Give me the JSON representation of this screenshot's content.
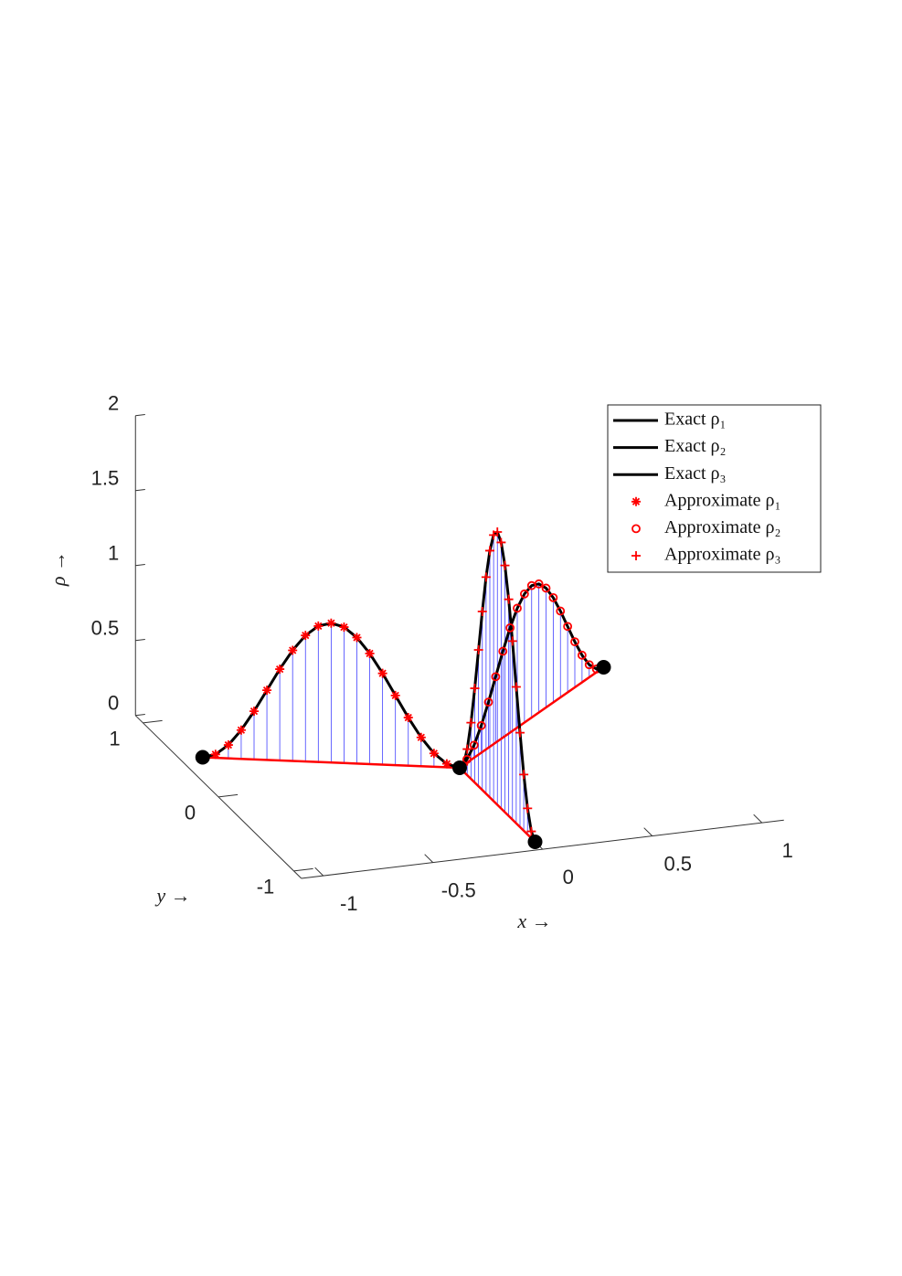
{
  "chart_data": {
    "type": "line3d",
    "xlabel": "x →",
    "ylabel": "y →",
    "zlabel": "ρ →",
    "xlim": [
      -1.1,
      1.1
    ],
    "ylim": [
      -1.1,
      1.1
    ],
    "zlim": [
      0,
      2
    ],
    "xticks": [
      -1,
      -0.5,
      0,
      0.5,
      1
    ],
    "yticks": [
      -1,
      0,
      1
    ],
    "zticks": [
      0,
      0.5,
      1,
      1.5,
      2
    ],
    "legend": "upper right",
    "stem_color": "#0000ff",
    "edge_color": "#ff0000",
    "nodes": {
      "color": "#000000",
      "x": [
        0,
        -1,
        1,
        0
      ],
      "y": [
        0,
        0.5,
        1,
        -1
      ]
    },
    "series": [
      {
        "name": "Exact ρ₁",
        "style": "line",
        "color": "#000000",
        "x": [
          -1,
          -0.95,
          -0.9,
          -0.85,
          -0.8,
          -0.75,
          -0.7,
          -0.65,
          -0.6,
          -0.55,
          -0.5,
          -0.45,
          -0.4,
          -0.35,
          -0.3,
          -0.25,
          -0.2,
          -0.15,
          -0.1,
          -0.05,
          0
        ],
        "y": [
          0.5,
          0.475,
          0.45,
          0.425,
          0.4,
          0.375,
          0.35,
          0.325,
          0.3,
          0.275,
          0.25,
          0.225,
          0.2,
          0.175,
          0.15,
          0.125,
          0.1,
          0.075,
          0.05,
          0.025,
          0
        ],
        "z": [
          0,
          0.023,
          0.089,
          0.192,
          0.321,
          0.465,
          0.609,
          0.738,
          0.841,
          0.907,
          0.93,
          0.907,
          0.841,
          0.738,
          0.609,
          0.465,
          0.321,
          0.192,
          0.089,
          0.023,
          0
        ]
      },
      {
        "name": "Exact ρ₂",
        "style": "line",
        "color": "#000000",
        "x": [
          0,
          0.05,
          0.1,
          0.15,
          0.2,
          0.25,
          0.3,
          0.35,
          0.4,
          0.45,
          0.5,
          0.55,
          0.6,
          0.65,
          0.7,
          0.75,
          0.8,
          0.85,
          0.9,
          0.95,
          1
        ],
        "y": [
          0,
          0.05,
          0.1,
          0.15,
          0.2,
          0.25,
          0.3,
          0.35,
          0.4,
          0.45,
          0.5,
          0.55,
          0.6,
          0.65,
          0.7,
          0.75,
          0.8,
          0.85,
          0.9,
          0.95,
          1
        ],
        "z": [
          0,
          0.022,
          0.084,
          0.181,
          0.304,
          0.44,
          0.576,
          0.699,
          0.796,
          0.858,
          0.88,
          0.858,
          0.796,
          0.699,
          0.576,
          0.44,
          0.304,
          0.181,
          0.084,
          0.022,
          0
        ]
      },
      {
        "name": "Exact ρ₃",
        "style": "line",
        "color": "#000000",
        "x": [
          0,
          0,
          0,
          0,
          0,
          0,
          0,
          0,
          0,
          0,
          0,
          0,
          0,
          0,
          0,
          0,
          0,
          0,
          0,
          0,
          0
        ],
        "y": [
          0,
          -0.05,
          -0.1,
          -0.15,
          -0.2,
          -0.25,
          -0.3,
          -0.35,
          -0.4,
          -0.45,
          -0.5,
          -0.55,
          -0.6,
          -0.65,
          -0.7,
          -0.75,
          -0.8,
          -0.85,
          -0.9,
          -0.95,
          -1
        ],
        "z": [
          0,
          0.045,
          0.174,
          0.375,
          0.629,
          0.91,
          1.191,
          1.445,
          1.646,
          1.775,
          1.82,
          1.775,
          1.646,
          1.445,
          1.191,
          0.91,
          0.629,
          0.375,
          0.174,
          0.045,
          0
        ]
      },
      {
        "name": "Approximate ρ₁",
        "style": "asterisk",
        "color": "#ff0000",
        "x": [
          -0.95,
          -0.9,
          -0.85,
          -0.8,
          -0.75,
          -0.7,
          -0.65,
          -0.6,
          -0.55,
          -0.5,
          -0.45,
          -0.4,
          -0.35,
          -0.3,
          -0.25,
          -0.2,
          -0.15,
          -0.1,
          -0.05
        ],
        "y": [
          0.475,
          0.45,
          0.425,
          0.4,
          0.375,
          0.35,
          0.325,
          0.3,
          0.275,
          0.25,
          0.225,
          0.2,
          0.175,
          0.15,
          0.125,
          0.1,
          0.075,
          0.05,
          0.025
        ],
        "z": [
          0.023,
          0.089,
          0.192,
          0.321,
          0.465,
          0.609,
          0.738,
          0.841,
          0.907,
          0.93,
          0.907,
          0.841,
          0.738,
          0.609,
          0.465,
          0.321,
          0.192,
          0.089,
          0.023
        ]
      },
      {
        "name": "Approximate ρ₂",
        "style": "circle",
        "color": "#ff0000",
        "x": [
          0.05,
          0.1,
          0.15,
          0.2,
          0.25,
          0.3,
          0.35,
          0.4,
          0.45,
          0.5,
          0.55,
          0.6,
          0.65,
          0.7,
          0.75,
          0.8,
          0.85,
          0.9,
          0.95
        ],
        "y": [
          0.05,
          0.1,
          0.15,
          0.2,
          0.25,
          0.3,
          0.35,
          0.4,
          0.45,
          0.5,
          0.55,
          0.6,
          0.65,
          0.7,
          0.75,
          0.8,
          0.85,
          0.9,
          0.95
        ],
        "z": [
          0.022,
          0.084,
          0.181,
          0.304,
          0.44,
          0.576,
          0.699,
          0.796,
          0.858,
          0.88,
          0.858,
          0.796,
          0.699,
          0.576,
          0.44,
          0.304,
          0.181,
          0.084,
          0.022
        ]
      },
      {
        "name": "Approximate ρ₃",
        "style": "plus",
        "color": "#ff0000",
        "x": [
          0,
          0,
          0,
          0,
          0,
          0,
          0,
          0,
          0,
          0,
          0,
          0,
          0,
          0,
          0,
          0,
          0,
          0,
          0
        ],
        "y": [
          -0.05,
          -0.1,
          -0.15,
          -0.2,
          -0.25,
          -0.3,
          -0.35,
          -0.4,
          -0.45,
          -0.5,
          -0.55,
          -0.6,
          -0.65,
          -0.7,
          -0.75,
          -0.8,
          -0.85,
          -0.9,
          -0.95
        ],
        "z": [
          0.045,
          0.174,
          0.375,
          0.629,
          0.91,
          1.191,
          1.445,
          1.646,
          1.775,
          1.82,
          1.775,
          1.646,
          1.445,
          1.191,
          0.91,
          0.629,
          0.375,
          0.174,
          0.045
        ]
      }
    ]
  }
}
